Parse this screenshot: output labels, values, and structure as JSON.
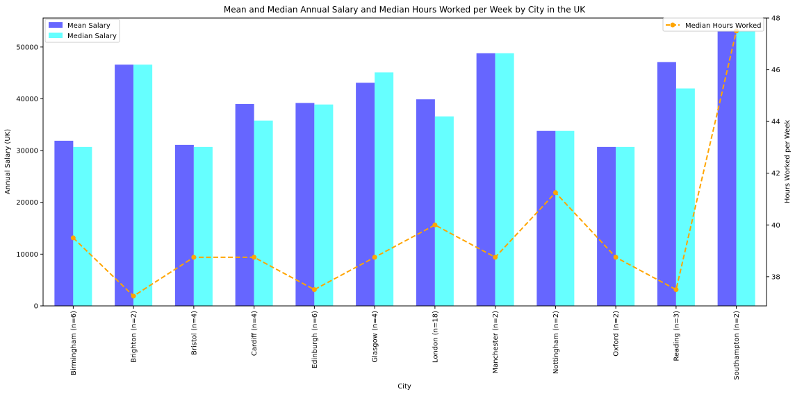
{
  "chart_data": {
    "type": "bar",
    "title": "Mean and Median Annual Salary and Median Hours Worked per Week by City in the UK",
    "xlabel": "City",
    "ylabel": "Annual Salary (UK)",
    "y2label": "Hours Worked per Week",
    "categories": [
      "Birmingham  (n=6)",
      "Brighton (n=2)",
      "Bristol  (n=4)",
      "Cardiff (n=4)",
      "Edinburgh (n=6)",
      "Glasgow (n=4)",
      "London (n=18)",
      "Manchester (n=2)",
      "Nottingham (n=2)",
      "Oxford (n=2)",
      "Reading (n=3)",
      "Southampton (n=2)"
    ],
    "series": [
      {
        "name": "Mean Salary",
        "type": "bar",
        "color": "#6666ff",
        "values": [
          31900,
          46600,
          31100,
          39000,
          39200,
          43100,
          39900,
          48800,
          33800,
          30700,
          47100,
          53000
        ]
      },
      {
        "name": "Median Salary",
        "type": "bar",
        "color": "#66ffff",
        "values": [
          30700,
          46600,
          30700,
          35800,
          38900,
          45100,
          36600,
          48800,
          33800,
          30700,
          42000,
          53000
        ]
      },
      {
        "name": "Median Hours Worked",
        "type": "line",
        "axis": "right",
        "color": "#ffa500",
        "linestyle": "dashed",
        "marker": "circle",
        "values": [
          39.5,
          37.25,
          38.75,
          38.75,
          37.5,
          38.75,
          40.0,
          38.75,
          41.25,
          38.75,
          37.5,
          47.5
        ]
      }
    ],
    "ylim": [
      0,
      55600
    ],
    "y2lim": [
      36.87,
      48.0
    ],
    "yticks": [
      0,
      10000,
      20000,
      30000,
      40000,
      50000
    ],
    "y2ticks": [
      38,
      40,
      42,
      44,
      46,
      48
    ],
    "grid": false,
    "legend_left": "top-left",
    "legend_right": "top-right"
  }
}
